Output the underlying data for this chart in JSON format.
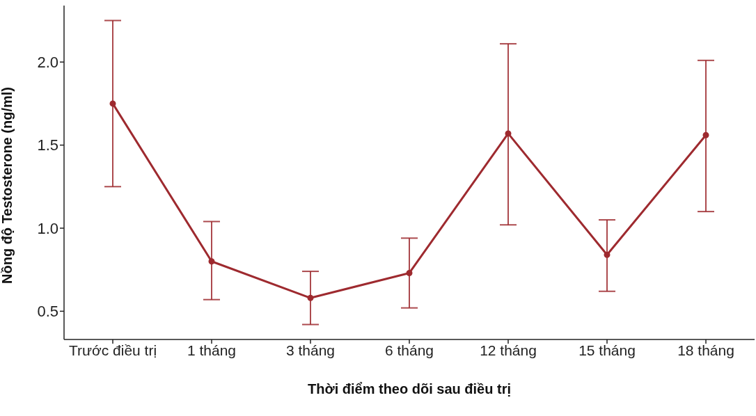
{
  "chart_data": {
    "type": "line",
    "xlabel": "Thời điểm theo dõi sau điều trị",
    "ylabel": "Nồng độ Testosterone (ng/ml)",
    "categories": [
      "Trước điều trị",
      "1 tháng",
      "3 tháng",
      "6 tháng",
      "12 tháng",
      "15 tháng",
      "18 tháng"
    ],
    "series": [
      {
        "color": "#9e2a2f",
        "values": [
          1.75,
          0.8,
          0.58,
          0.73,
          1.57,
          0.84,
          1.56
        ],
        "errors": [
          [
            1.25,
            2.25
          ],
          [
            0.57,
            1.04
          ],
          [
            0.42,
            0.74
          ],
          [
            0.52,
            0.94
          ],
          [
            1.02,
            2.11
          ],
          [
            0.62,
            1.05
          ],
          [
            1.1,
            2.01
          ]
        ]
      }
    ],
    "ylim": [
      0.33,
      2.34
    ],
    "yticks": [
      {
        "value": 0.5,
        "label": "0.5"
      },
      {
        "value": 1,
        "label": "1.0"
      },
      {
        "value": 1.5,
        "label": "1.5"
      },
      {
        "value": 2,
        "label": "2.0"
      }
    ],
    "grid": false,
    "legend": false,
    "marker": "circle",
    "line_style": "solid"
  }
}
